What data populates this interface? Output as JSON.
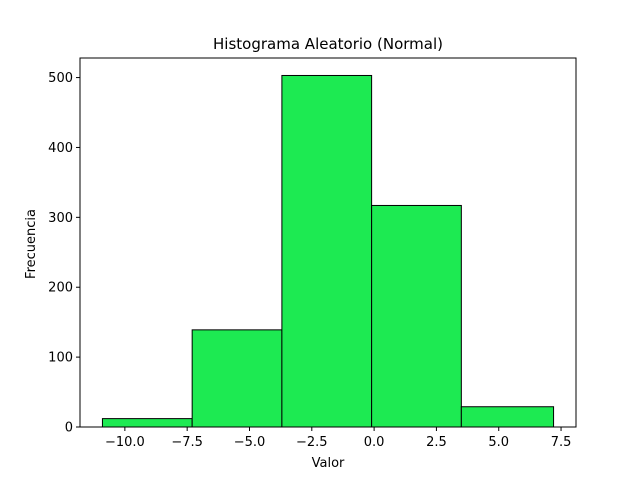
{
  "chart_data": {
    "type": "bar",
    "title": "Histograma Aleatorio (Normal)",
    "xlabel": "Valor",
    "ylabel": "Frecuencia",
    "bar_color": "#1dea52",
    "edge_color": "#000000",
    "bins": [
      {
        "x0": -10.9,
        "x1": -7.3,
        "count": 12
      },
      {
        "x0": -7.3,
        "x1": -3.7,
        "count": 139
      },
      {
        "x0": -3.7,
        "x1": -0.1,
        "count": 503
      },
      {
        "x0": -0.1,
        "x1": 3.5,
        "count": 317
      },
      {
        "x0": 3.5,
        "x1": 7.2,
        "count": 29
      }
    ],
    "xlim": [
      -11.8,
      8.1
    ],
    "ylim": [
      0,
      528
    ],
    "xticks": [
      {
        "value": -10.0,
        "label": "−10.0"
      },
      {
        "value": -7.5,
        "label": "−7.5"
      },
      {
        "value": -5.0,
        "label": "−5.0"
      },
      {
        "value": -2.5,
        "label": "−2.5"
      },
      {
        "value": 0.0,
        "label": "0.0"
      },
      {
        "value": 2.5,
        "label": "2.5"
      },
      {
        "value": 5.0,
        "label": "5.0"
      },
      {
        "value": 7.5,
        "label": "7.5"
      }
    ],
    "yticks": [
      {
        "value": 0,
        "label": "0"
      },
      {
        "value": 100,
        "label": "100"
      },
      {
        "value": 200,
        "label": "200"
      },
      {
        "value": 300,
        "label": "300"
      },
      {
        "value": 400,
        "label": "400"
      },
      {
        "value": 500,
        "label": "500"
      }
    ],
    "grid": false,
    "legend": null
  }
}
